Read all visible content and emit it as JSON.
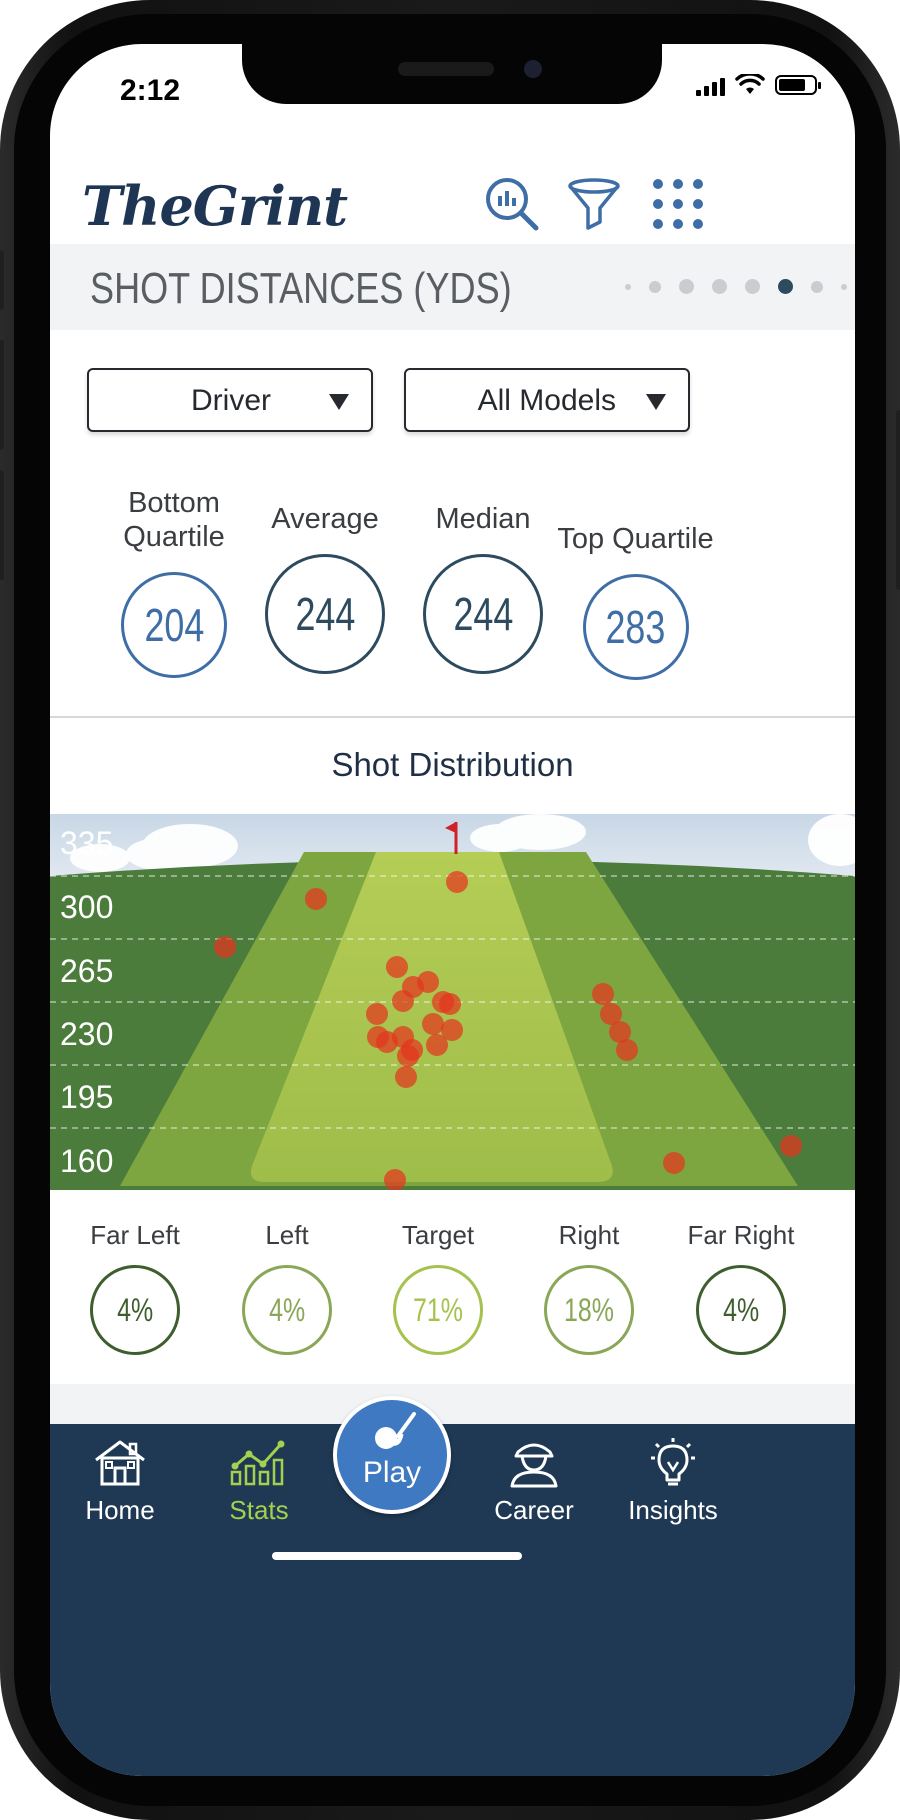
{
  "status_bar": {
    "time": "2:12"
  },
  "header": {
    "logo": "TheGrint"
  },
  "section": {
    "title": "SHOT DISTANCES (YDS)",
    "page_index": 6,
    "page_count": 8
  },
  "filters": {
    "club": "Driver",
    "model": "All Models"
  },
  "stats": [
    {
      "label": "Bottom Quartile",
      "value": "204"
    },
    {
      "label": "Average",
      "value": "244"
    },
    {
      "label": "Median",
      "value": "244"
    },
    {
      "label": "Top Quartile",
      "value": "283"
    }
  ],
  "distribution": {
    "title": "Shot Distribution",
    "y_axis_labels": [
      "335",
      "300",
      "265",
      "230",
      "195",
      "160"
    ]
  },
  "direction_pcts": [
    {
      "label": "Far Left",
      "value": "4%",
      "color": "#3f5e2e"
    },
    {
      "label": "Left",
      "value": "4%",
      "color": "#8aa657"
    },
    {
      "label": "Target",
      "value": "71%",
      "color": "#a5c24e"
    },
    {
      "label": "Right",
      "value": "18%",
      "color": "#8aa657"
    },
    {
      "label": "Far Right",
      "value": "4%",
      "color": "#3f5e2e"
    }
  ],
  "nav": {
    "home": "Home",
    "stats": "Stats",
    "play": "Play",
    "career": "Career",
    "insights": "Insights"
  },
  "colors": {
    "navy": "#1f3954",
    "accent_green": "#a4cf4f",
    "blue": "#3f79c2"
  }
}
